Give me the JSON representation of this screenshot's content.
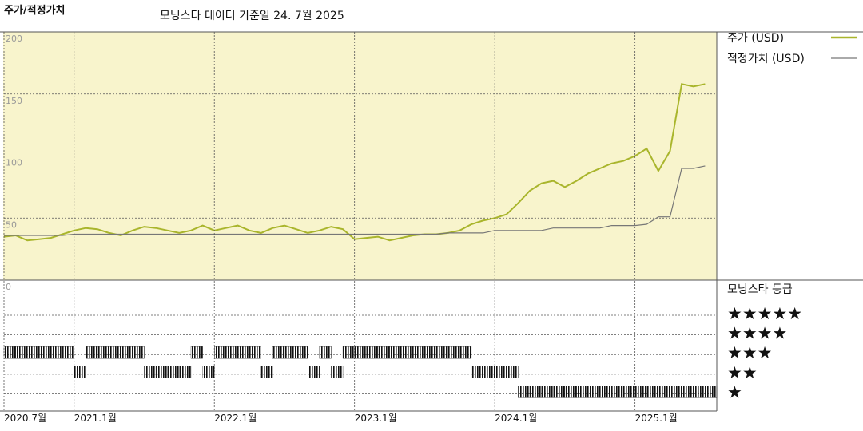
{
  "chart_data": [
    {
      "type": "line",
      "title": "주가/적정가치",
      "subtitle": "모닝스타 데이터 기준일 24. 7월 2025",
      "x": [
        "2020-07",
        "2020-08",
        "2020-09",
        "2020-10",
        "2020-11",
        "2020-12",
        "2021-01",
        "2021-02",
        "2021-03",
        "2021-04",
        "2021-05",
        "2021-06",
        "2021-07",
        "2021-08",
        "2021-09",
        "2021-10",
        "2021-11",
        "2021-12",
        "2022-01",
        "2022-02",
        "2022-03",
        "2022-04",
        "2022-05",
        "2022-06",
        "2022-07",
        "2022-08",
        "2022-09",
        "2022-10",
        "2022-11",
        "2022-12",
        "2023-01",
        "2023-02",
        "2023-03",
        "2023-04",
        "2023-05",
        "2023-06",
        "2023-07",
        "2023-08",
        "2023-09",
        "2023-10",
        "2023-11",
        "2023-12",
        "2024-01",
        "2024-02",
        "2024-03",
        "2024-04",
        "2024-05",
        "2024-06",
        "2024-07",
        "2024-08",
        "2024-09",
        "2024-10",
        "2024-11",
        "2024-12",
        "2025-01",
        "2025-02",
        "2025-03",
        "2025-04",
        "2025-05",
        "2025-06",
        "2025-07"
      ],
      "series": [
        {
          "name": "주가 (USD)",
          "color": "#a9b52c",
          "values": [
            35,
            36,
            32,
            33,
            34,
            37,
            40,
            42,
            41,
            38,
            36,
            40,
            43,
            42,
            40,
            38,
            40,
            44,
            40,
            42,
            44,
            40,
            38,
            42,
            44,
            41,
            38,
            40,
            43,
            41,
            33,
            34,
            35,
            32,
            34,
            36,
            37,
            37,
            38,
            40,
            45,
            48,
            50,
            53,
            62,
            72,
            78,
            80,
            75,
            80,
            86,
            90,
            94,
            96,
            100,
            106,
            88,
            104,
            158,
            156,
            158
          ]
        },
        {
          "name": "적정가치 (USD)",
          "color": "#777777",
          "values": [
            36,
            36,
            36,
            36,
            36,
            36,
            37,
            37,
            37,
            37,
            37,
            37,
            37,
            37,
            37,
            37,
            37,
            37,
            37,
            37,
            37,
            37,
            37,
            37,
            37,
            37,
            37,
            37,
            37,
            37,
            37,
            37,
            37,
            37,
            37,
            37,
            37,
            37,
            38,
            38,
            38,
            38,
            40,
            40,
            40,
            40,
            40,
            42,
            42,
            42,
            42,
            42,
            44,
            44,
            44,
            45,
            51,
            51,
            90,
            90,
            92
          ]
        }
      ],
      "xlim": [
        "2020-07",
        "2025-08"
      ],
      "ylim": [
        0,
        200
      ],
      "yticks": [
        0,
        50,
        100,
        150,
        200
      ],
      "grid": true
    },
    {
      "type": "rating",
      "title": "모닝스타 등급",
      "x": [
        "2020-07",
        "2020-08",
        "2020-09",
        "2020-10",
        "2020-11",
        "2020-12",
        "2021-01",
        "2021-02",
        "2021-03",
        "2021-04",
        "2021-05",
        "2021-06",
        "2021-07",
        "2021-08",
        "2021-09",
        "2021-10",
        "2021-11",
        "2021-12",
        "2022-01",
        "2022-02",
        "2022-03",
        "2022-04",
        "2022-05",
        "2022-06",
        "2022-07",
        "2022-08",
        "2022-09",
        "2022-10",
        "2022-11",
        "2022-12",
        "2023-01",
        "2023-02",
        "2023-03",
        "2023-04",
        "2023-05",
        "2023-06",
        "2023-07",
        "2023-08",
        "2023-09",
        "2023-10",
        "2023-11",
        "2023-12",
        "2024-01",
        "2024-02",
        "2024-03",
        "2024-04",
        "2024-05",
        "2024-06",
        "2024-07",
        "2024-08",
        "2024-09",
        "2024-10",
        "2024-11",
        "2024-12",
        "2025-01",
        "2025-02",
        "2025-03",
        "2025-04",
        "2025-05",
        "2025-06",
        "2025-07"
      ],
      "values": [
        3,
        3,
        3,
        3,
        3,
        3,
        2,
        3,
        3,
        3,
        3,
        3,
        2,
        2,
        2,
        2,
        3,
        2,
        3,
        3,
        3,
        3,
        2,
        3,
        3,
        3,
        2,
        3,
        2,
        3,
        3,
        3,
        3,
        3,
        3,
        3,
        3,
        3,
        3,
        3,
        2,
        2,
        2,
        2,
        1,
        1,
        1,
        1,
        1,
        1,
        1,
        1,
        1,
        1,
        1,
        1,
        1,
        1,
        1,
        1,
        1
      ],
      "xlim": [
        "2020-07",
        "2025-08"
      ],
      "xticks": [
        {
          "value": "2020-07",
          "label": "2020.7월"
        },
        {
          "value": "2021-01",
          "label": "2021.1월"
        },
        {
          "value": "2022-01",
          "label": "2022.1월"
        },
        {
          "value": "2023-01",
          "label": "2023.1월"
        },
        {
          "value": "2024-01",
          "label": "2024.1월"
        },
        {
          "value": "2025-01",
          "label": "2025.1월"
        }
      ],
      "yticks": [
        {
          "value": 5,
          "label": "★★★★★"
        },
        {
          "value": 4,
          "label": "★★★★"
        },
        {
          "value": 3,
          "label": "★★★"
        },
        {
          "value": 2,
          "label": "★★"
        },
        {
          "value": 1,
          "label": "★"
        }
      ],
      "color": "#111111"
    }
  ]
}
